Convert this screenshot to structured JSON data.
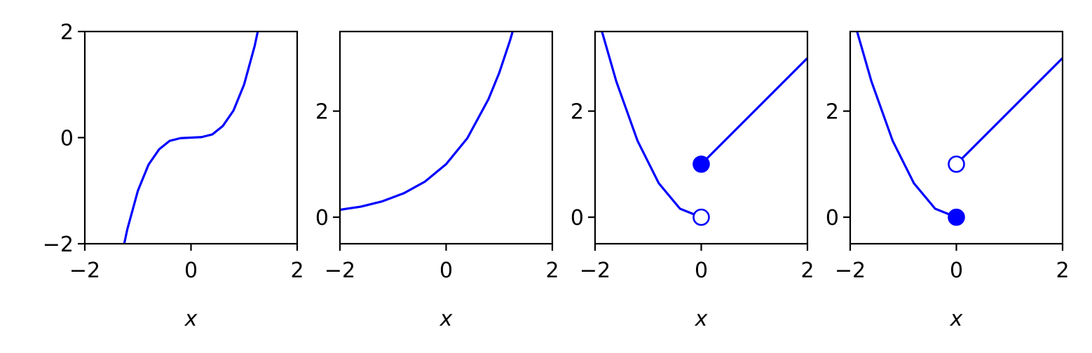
{
  "chart_data": [
    {
      "type": "line",
      "xlabel": "x",
      "ylabel": "",
      "xlim": [
        -2,
        2
      ],
      "ylim": [
        -2,
        2
      ],
      "xticks": [
        -2,
        0,
        2
      ],
      "xtick_labels": [
        "−2",
        "0",
        "2"
      ],
      "yticks": [
        -2,
        0,
        2
      ],
      "ytick_labels": [
        "−2",
        "0",
        "2"
      ],
      "color": "#0000ff",
      "series": [
        {
          "x": [
            -1.3,
            -1.2,
            -1.0,
            -0.8,
            -0.6,
            -0.4,
            -0.2,
            0,
            0.2,
            0.4,
            0.6,
            0.8,
            1.0,
            1.2,
            1.3
          ],
          "y": [
            -2.2,
            -1.73,
            -1.0,
            -0.51,
            -0.22,
            -0.06,
            -0.01,
            0,
            0.01,
            0.06,
            0.22,
            0.51,
            1.0,
            1.73,
            2.2
          ]
        }
      ],
      "markers": []
    },
    {
      "type": "line",
      "xlabel": "x",
      "ylabel": "",
      "xlim": [
        -2,
        2
      ],
      "ylim": [
        -0.5,
        3.5
      ],
      "xticks": [
        -2,
        0,
        2
      ],
      "xtick_labels": [
        "−2",
        "0",
        "2"
      ],
      "yticks": [
        0,
        2
      ],
      "ytick_labels": [
        "0",
        "2"
      ],
      "color": "#0000ff",
      "series": [
        {
          "x": [
            -2.0,
            -1.6,
            -1.2,
            -0.8,
            -0.4,
            0,
            0.4,
            0.8,
            1.0,
            1.2,
            1.25
          ],
          "y": [
            0.14,
            0.2,
            0.3,
            0.45,
            0.67,
            1.0,
            1.49,
            2.23,
            2.72,
            3.32,
            3.49
          ]
        }
      ],
      "markers": []
    },
    {
      "type": "line",
      "xlabel": "x",
      "ylabel": "",
      "xlim": [
        -2,
        2
      ],
      "ylim": [
        -0.5,
        3.5
      ],
      "xticks": [
        -2,
        0,
        2
      ],
      "xtick_labels": [
        "−2",
        "0",
        "2"
      ],
      "yticks": [
        0,
        2
      ],
      "ytick_labels": [
        "0",
        "2"
      ],
      "color": "#0000ff",
      "series": [
        {
          "x": [
            -1.87,
            -1.6,
            -1.2,
            -0.8,
            -0.4,
            0
          ],
          "y": [
            3.5,
            2.56,
            1.44,
            0.64,
            0.16,
            0
          ]
        },
        {
          "x": [
            0,
            2.0
          ],
          "y": [
            1.0,
            3.0
          ]
        }
      ],
      "markers": [
        {
          "x": 0,
          "y": 1,
          "filled": true
        },
        {
          "x": 0,
          "y": 0,
          "filled": false
        }
      ]
    },
    {
      "type": "line",
      "xlabel": "x",
      "ylabel": "",
      "xlim": [
        -2,
        2
      ],
      "ylim": [
        -0.5,
        3.5
      ],
      "xticks": [
        -2,
        0,
        2
      ],
      "xtick_labels": [
        "−2",
        "0",
        "2"
      ],
      "yticks": [
        0,
        2
      ],
      "ytick_labels": [
        "0",
        "2"
      ],
      "color": "#0000ff",
      "series": [
        {
          "x": [
            -1.87,
            -1.6,
            -1.2,
            -0.8,
            -0.4,
            0
          ],
          "y": [
            3.5,
            2.56,
            1.44,
            0.64,
            0.16,
            0
          ]
        },
        {
          "x": [
            0,
            2.0
          ],
          "y": [
            1.0,
            3.0
          ]
        }
      ],
      "markers": [
        {
          "x": 0,
          "y": 1,
          "filled": false
        },
        {
          "x": 0,
          "y": 0,
          "filled": true
        }
      ]
    }
  ]
}
